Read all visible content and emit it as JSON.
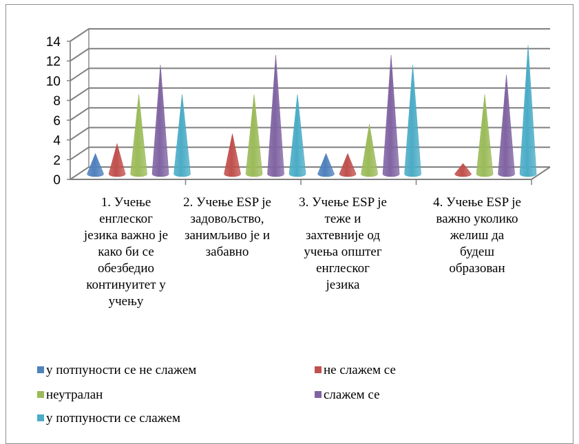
{
  "chart_data": {
    "type": "bar",
    "style": "3d-cone",
    "categories": [
      "1. Учење енглеског језика важно је како би се обезбедио континуитет у учењу",
      "2. Учење ESP је задовољство, занимљиво је и забавно",
      "3. Учење ESP је теже и захтевније од учења општег енглеског језика",
      "4. Учење ESP је важно уколико желиш да будеш образован"
    ],
    "series": [
      {
        "name": "у потпуности се не слажем",
        "color": "#4f81bd",
        "values": [
          2,
          0,
          2,
          0
        ]
      },
      {
        "name": "не слажем се",
        "color": "#c0504d",
        "values": [
          3,
          4,
          2,
          1
        ]
      },
      {
        "name": "неутралан",
        "color": "#9bbb59",
        "values": [
          8,
          8,
          5,
          8
        ]
      },
      {
        "name": "слажем се",
        "color": "#8064a2",
        "values": [
          11,
          12,
          12,
          10
        ]
      },
      {
        "name": "у потпуности се слажем",
        "color": "#4bacc6",
        "values": [
          8,
          8,
          11,
          13
        ]
      }
    ],
    "yticks": [
      "0",
      "2",
      "4",
      "6",
      "8",
      "10",
      "12",
      "14"
    ],
    "ylim": [
      0,
      14
    ],
    "grid": true,
    "legend_position": "bottom"
  }
}
